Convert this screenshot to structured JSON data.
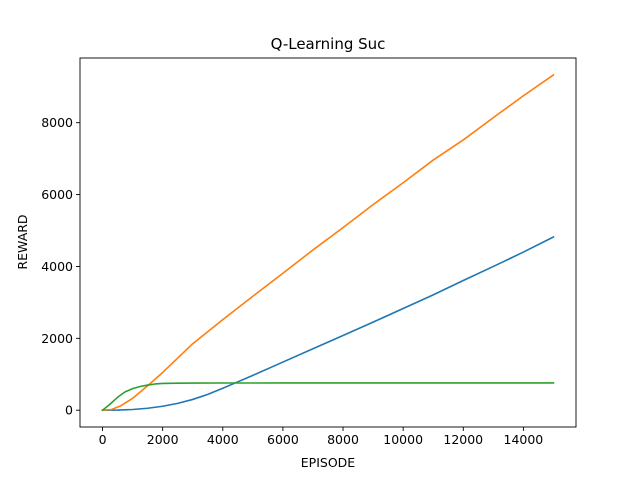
{
  "chart_data": {
    "type": "line",
    "title": "Q-Learning Suc",
    "xlabel": "EPISODE",
    "ylabel": "REWARD",
    "xlim": [
      -750,
      15750
    ],
    "ylim": [
      -467,
      9800
    ],
    "xticks": [
      0,
      2000,
      4000,
      6000,
      8000,
      10000,
      12000,
      14000
    ],
    "xtick_labels": [
      "0",
      "2000",
      "4000",
      "6000",
      "8000",
      "10000",
      "12000",
      "14000"
    ],
    "yticks": [
      0,
      2000,
      4000,
      6000,
      8000
    ],
    "ytick_labels": [
      "0",
      "2000",
      "4000",
      "6000",
      "8000"
    ],
    "grid": false,
    "legend": "none",
    "series": [
      {
        "color": "#1f77b4",
        "x": [
          0,
          500,
          1000,
          1500,
          2000,
          2500,
          3000,
          3500,
          4000,
          4500,
          5000,
          6000,
          7000,
          8000,
          9000,
          10000,
          11000,
          12000,
          13000,
          14000,
          15000
        ],
        "y": [
          0,
          5,
          20,
          55,
          110,
          190,
          300,
          440,
          610,
          790,
          970,
          1340,
          1710,
          2080,
          2450,
          2830,
          3210,
          3610,
          4000,
          4400,
          4820
        ]
      },
      {
        "color": "#ff7f0e",
        "x": [
          0,
          300,
          600,
          1000,
          1500,
          2000,
          2500,
          3000,
          4000,
          5000,
          6000,
          7000,
          8000,
          9000,
          10000,
          11000,
          12000,
          13000,
          14000,
          15000
        ],
        "y": [
          0,
          20,
          120,
          330,
          680,
          1050,
          1450,
          1850,
          2520,
          3170,
          3810,
          4460,
          5080,
          5720,
          6330,
          6960,
          7520,
          8140,
          8750,
          9330
        ]
      },
      {
        "color": "#2ca02c",
        "x": [
          0,
          250,
          500,
          750,
          1000,
          1250,
          1500,
          1750,
          2000,
          2500,
          3000,
          4000,
          6000,
          8000,
          10000,
          12000,
          14000,
          15000
        ],
        "y": [
          0,
          170,
          360,
          510,
          600,
          660,
          700,
          730,
          745,
          752,
          755,
          757,
          758,
          760,
          760,
          760,
          760,
          760
        ]
      }
    ]
  }
}
